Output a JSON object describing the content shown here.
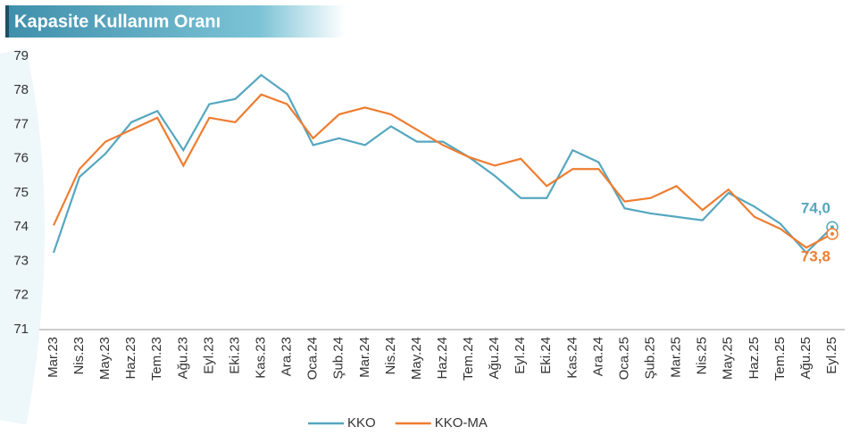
{
  "chart_data": {
    "type": "line",
    "title": "Kapasite Kullanım Oranı",
    "categories": [
      "Mar.23",
      "Nis.23",
      "May.23",
      "Haz.23",
      "Tem.23",
      "Ağu.23",
      "Eyl.23",
      "Eki.23",
      "Kas.23",
      "Ara.23",
      "Oca.24",
      "Şub.24",
      "Mar.24",
      "Nis.24",
      "May.24",
      "Haz.24",
      "Tem.24",
      "Ağu.24",
      "Eyl.24",
      "Eki.24",
      "Kas.24",
      "Ara.24",
      "Oca.25",
      "Şub.25",
      "Mar.25",
      "Nis.25",
      "May.25",
      "Haz.25",
      "Tem.25",
      "Ağu.25",
      "Eyl.25"
    ],
    "series": [
      {
        "name": "KKO",
        "color": "#55a7bf",
        "values": [
          73.25,
          75.47,
          76.15,
          77.07,
          77.4,
          76.25,
          77.6,
          77.75,
          78.45,
          77.9,
          76.4,
          76.6,
          76.4,
          76.95,
          76.5,
          76.5,
          76.05,
          75.5,
          74.85,
          74.85,
          76.25,
          75.9,
          74.55,
          74.4,
          74.3,
          74.2,
          75.0,
          74.6,
          74.1,
          73.25,
          74.0
        ],
        "value_labels": [
          null,
          null,
          null,
          null,
          null,
          null,
          null,
          null,
          null,
          null,
          null,
          null,
          null,
          null,
          null,
          null,
          null,
          null,
          null,
          null,
          null,
          null,
          null,
          null,
          null,
          null,
          null,
          null,
          null,
          null,
          "74,0"
        ]
      },
      {
        "name": "KKO-MA",
        "color": "#ee7d31",
        "values": [
          74.05,
          75.7,
          76.5,
          76.85,
          77.2,
          75.8,
          77.2,
          77.07,
          77.88,
          77.6,
          76.6,
          77.3,
          77.5,
          77.3,
          76.85,
          76.4,
          76.05,
          75.8,
          76.0,
          75.2,
          75.7,
          75.7,
          74.75,
          74.85,
          75.2,
          74.5,
          75.1,
          74.3,
          73.95,
          73.4,
          73.8
        ],
        "value_labels": [
          null,
          null,
          null,
          null,
          null,
          null,
          null,
          null,
          null,
          null,
          null,
          null,
          null,
          null,
          null,
          null,
          null,
          null,
          null,
          null,
          null,
          null,
          null,
          null,
          null,
          null,
          null,
          null,
          null,
          null,
          "73,8"
        ]
      }
    ],
    "ylim": [
      71,
      79
    ],
    "yticks": [
      71,
      72,
      73,
      74,
      75,
      76,
      77,
      78,
      79
    ]
  }
}
